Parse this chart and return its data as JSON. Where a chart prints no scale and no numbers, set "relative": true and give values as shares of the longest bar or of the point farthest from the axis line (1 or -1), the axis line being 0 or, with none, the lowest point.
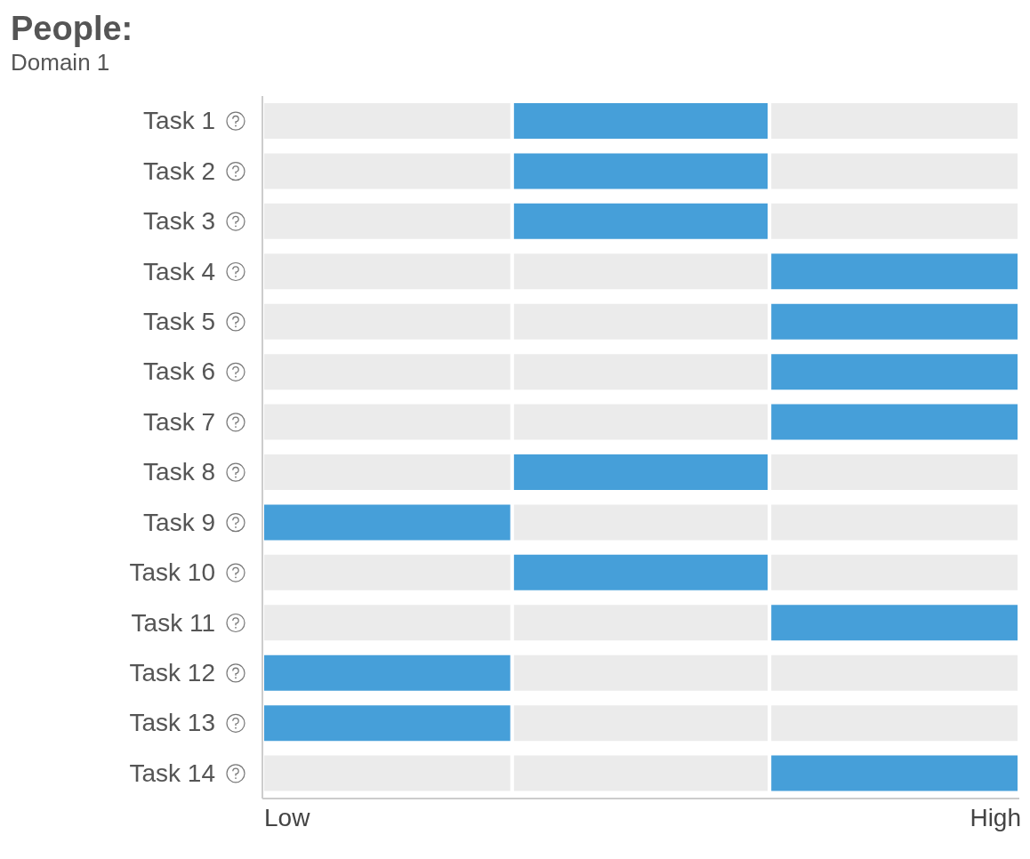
{
  "chart_data": {
    "type": "bar",
    "title": "People:",
    "subtitle": "Domain 1",
    "orientation": "horizontal",
    "relative": true,
    "stacked": true,
    "categories": [
      "Task 1",
      "Task 2",
      "Task 3",
      "Task 4",
      "Task 5",
      "Task 6",
      "Task 7",
      "Task 8",
      "Task 9",
      "Task 10",
      "Task 11",
      "Task 12",
      "Task 13",
      "Task 14"
    ],
    "series": [
      {
        "values": [
          0.33,
          0.33,
          0.33,
          0.33,
          0.33,
          0.33,
          0.33,
          0.33,
          0.33,
          0.33,
          0.33,
          0.33,
          0.33,
          0.33
        ],
        "colors": [
          "#ebebeb",
          "#ebebeb",
          "#ebebeb",
          "#ebebeb",
          "#ebebeb",
          "#ebebeb",
          "#ebebeb",
          "#ebebeb",
          "#469fd9",
          "#ebebeb",
          "#ebebeb",
          "#469fd9",
          "#469fd9",
          "#ebebeb"
        ]
      },
      {
        "values": [
          0.34,
          0.34,
          0.34,
          0.34,
          0.34,
          0.34,
          0.34,
          0.34,
          0.34,
          0.34,
          0.34,
          0.34,
          0.34,
          0.34
        ],
        "colors": [
          "#469fd9",
          "#469fd9",
          "#469fd9",
          "#ebebeb",
          "#ebebeb",
          "#ebebeb",
          "#ebebeb",
          "#469fd9",
          "#ebebeb",
          "#469fd9",
          "#ebebeb",
          "#ebebeb",
          "#ebebeb",
          "#ebebeb"
        ]
      },
      {
        "values": [
          0.33,
          0.33,
          0.33,
          0.33,
          0.33,
          0.33,
          0.33,
          0.33,
          0.33,
          0.33,
          0.33,
          0.33,
          0.33,
          0.33
        ],
        "colors": [
          "#ebebeb",
          "#ebebeb",
          "#ebebeb",
          "#469fd9",
          "#469fd9",
          "#469fd9",
          "#469fd9",
          "#ebebeb",
          "#ebebeb",
          "#ebebeb",
          "#469fd9",
          "#ebebeb",
          "#ebebeb",
          "#469fd9"
        ]
      }
    ],
    "annotations": [
      "Low",
      "High"
    ],
    "grid": false,
    "legend": false
  }
}
